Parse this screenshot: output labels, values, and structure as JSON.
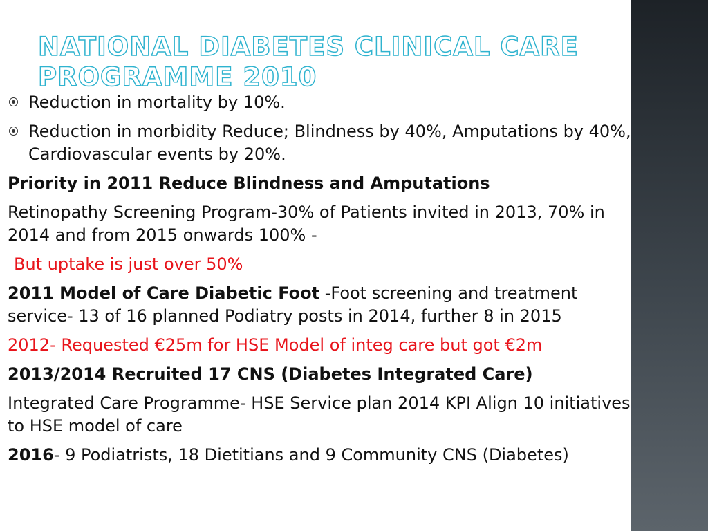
{
  "slide": {
    "title_line1": "National Diabetes Clinical Care",
    "title_line2": "Programme 2010"
  },
  "bullets": [
    "Reduction in mortality by 10%.",
    "Reduction in morbidity Reduce; Blindness by 40%, Amputations by 40%, Cardiovascular events by 20%."
  ],
  "paragraphs": {
    "priority": "Priority in 2011 Reduce Blindness and Amputations",
    "retinopathy": "Retinopathy Screening Program-30% of Patients invited in 2013, 70% in 2014 and from 2015 onwards 100% -",
    "uptake": "But uptake is just over 50%",
    "foot_bold": "2011 Model of Care Diabetic Foot",
    "foot_rest": " -Foot screening and treatment service- 13 of 16 planned Podiatry posts in 2014, further 8 in 2015",
    "request": "2012- Requested €25m for HSE Model of integ care but got €2m",
    "recruited": "2013/2014 Recruited 17 CNS (Diabetes Integrated Care)",
    "integrated": "Integrated Care Programme- HSE Service plan 2014 KPI Align 10 initiatives to HSE model of care",
    "y2016_bold": "2016",
    "y2016_rest": "- 9 Podiatrists, 18 Dietitians and 9 Community CNS (Diabetes)"
  },
  "colors": {
    "title_outline": "#2fb3cf",
    "highlight_red": "#e8141b",
    "sidebar_dark": "#1d2227"
  }
}
